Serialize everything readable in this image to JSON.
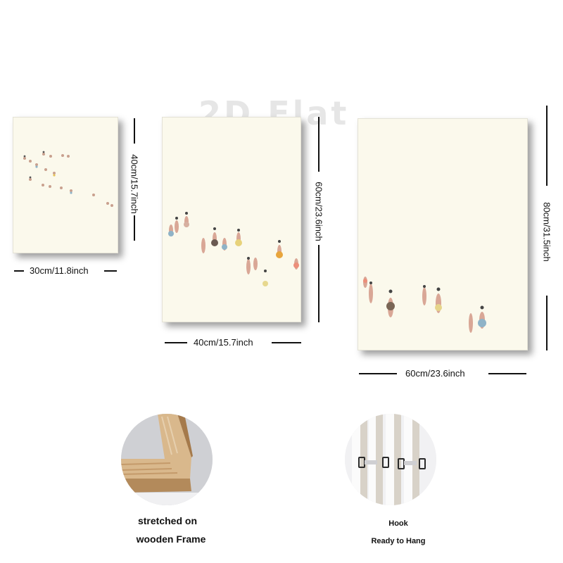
{
  "watermark": "2D Flat",
  "panels": [
    {
      "name": "small",
      "width_label": "30cm/11.8inch",
      "height_label": "40cm/15.7inch"
    },
    {
      "name": "medium",
      "width_label": "40cm/15.7inch",
      "height_label": "60cm/23.6inch"
    },
    {
      "name": "large",
      "width_label": "60cm/23.6inch",
      "height_label": "80cm/31.5inch"
    }
  ],
  "features": [
    {
      "name": "frame",
      "caption_line1": "stretched on",
      "caption_line2": "wooden Frame"
    },
    {
      "name": "hook",
      "caption_line1": "Hook",
      "caption_line2": "Ready to Hang"
    }
  ],
  "colors": {
    "canvas": "#fbf9ec",
    "ink": "#111111",
    "wood": "#d9b88c"
  }
}
